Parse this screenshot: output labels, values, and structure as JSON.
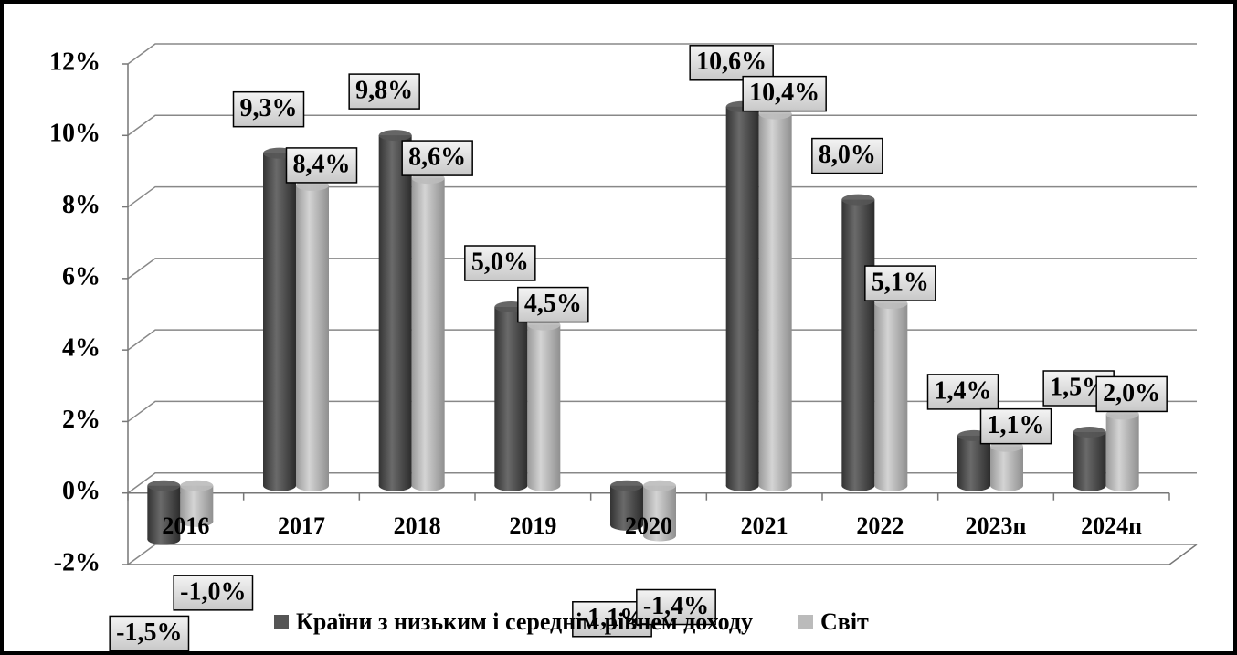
{
  "chart_data": {
    "type": "bar",
    "categories": [
      "2016",
      "2017",
      "2018",
      "2019",
      "2020",
      "2021",
      "2022",
      "2023п",
      "2024п"
    ],
    "series": [
      {
        "name": "Країни з низьким і середнім рівнем доходу",
        "color": "#555555",
        "values": [
          -1.5,
          9.3,
          9.8,
          5.0,
          -1.1,
          10.6,
          8.0,
          1.4,
          1.5
        ],
        "value_labels": [
          "-1,5%",
          "9,3%",
          "9,8%",
          "5,0%",
          "-1,1%",
          "10,6%",
          "8,0%",
          "1,4%",
          "1,5%"
        ]
      },
      {
        "name": "Світ",
        "color": "#bbbbbb",
        "values": [
          -1.0,
          8.4,
          8.6,
          4.5,
          -1.4,
          10.4,
          5.1,
          1.1,
          2.0
        ],
        "value_labels": [
          "-1,0%",
          "8,4%",
          "8,6%",
          "4,5%",
          "-1,4%",
          "10,4%",
          "5,1%",
          "1,1%",
          "2,0%"
        ]
      }
    ],
    "ylim": [
      -2,
      12
    ],
    "yticks": [
      {
        "value": -2,
        "label": "-2%"
      },
      {
        "value": 0,
        "label": "0%"
      },
      {
        "value": 2,
        "label": "2%"
      },
      {
        "value": 4,
        "label": "4%"
      },
      {
        "value": 6,
        "label": "6%"
      },
      {
        "value": 8,
        "label": "8%"
      },
      {
        "value": 10,
        "label": "10%"
      },
      {
        "value": 12,
        "label": "12%"
      }
    ],
    "grid": true,
    "legend": "bottom"
  }
}
